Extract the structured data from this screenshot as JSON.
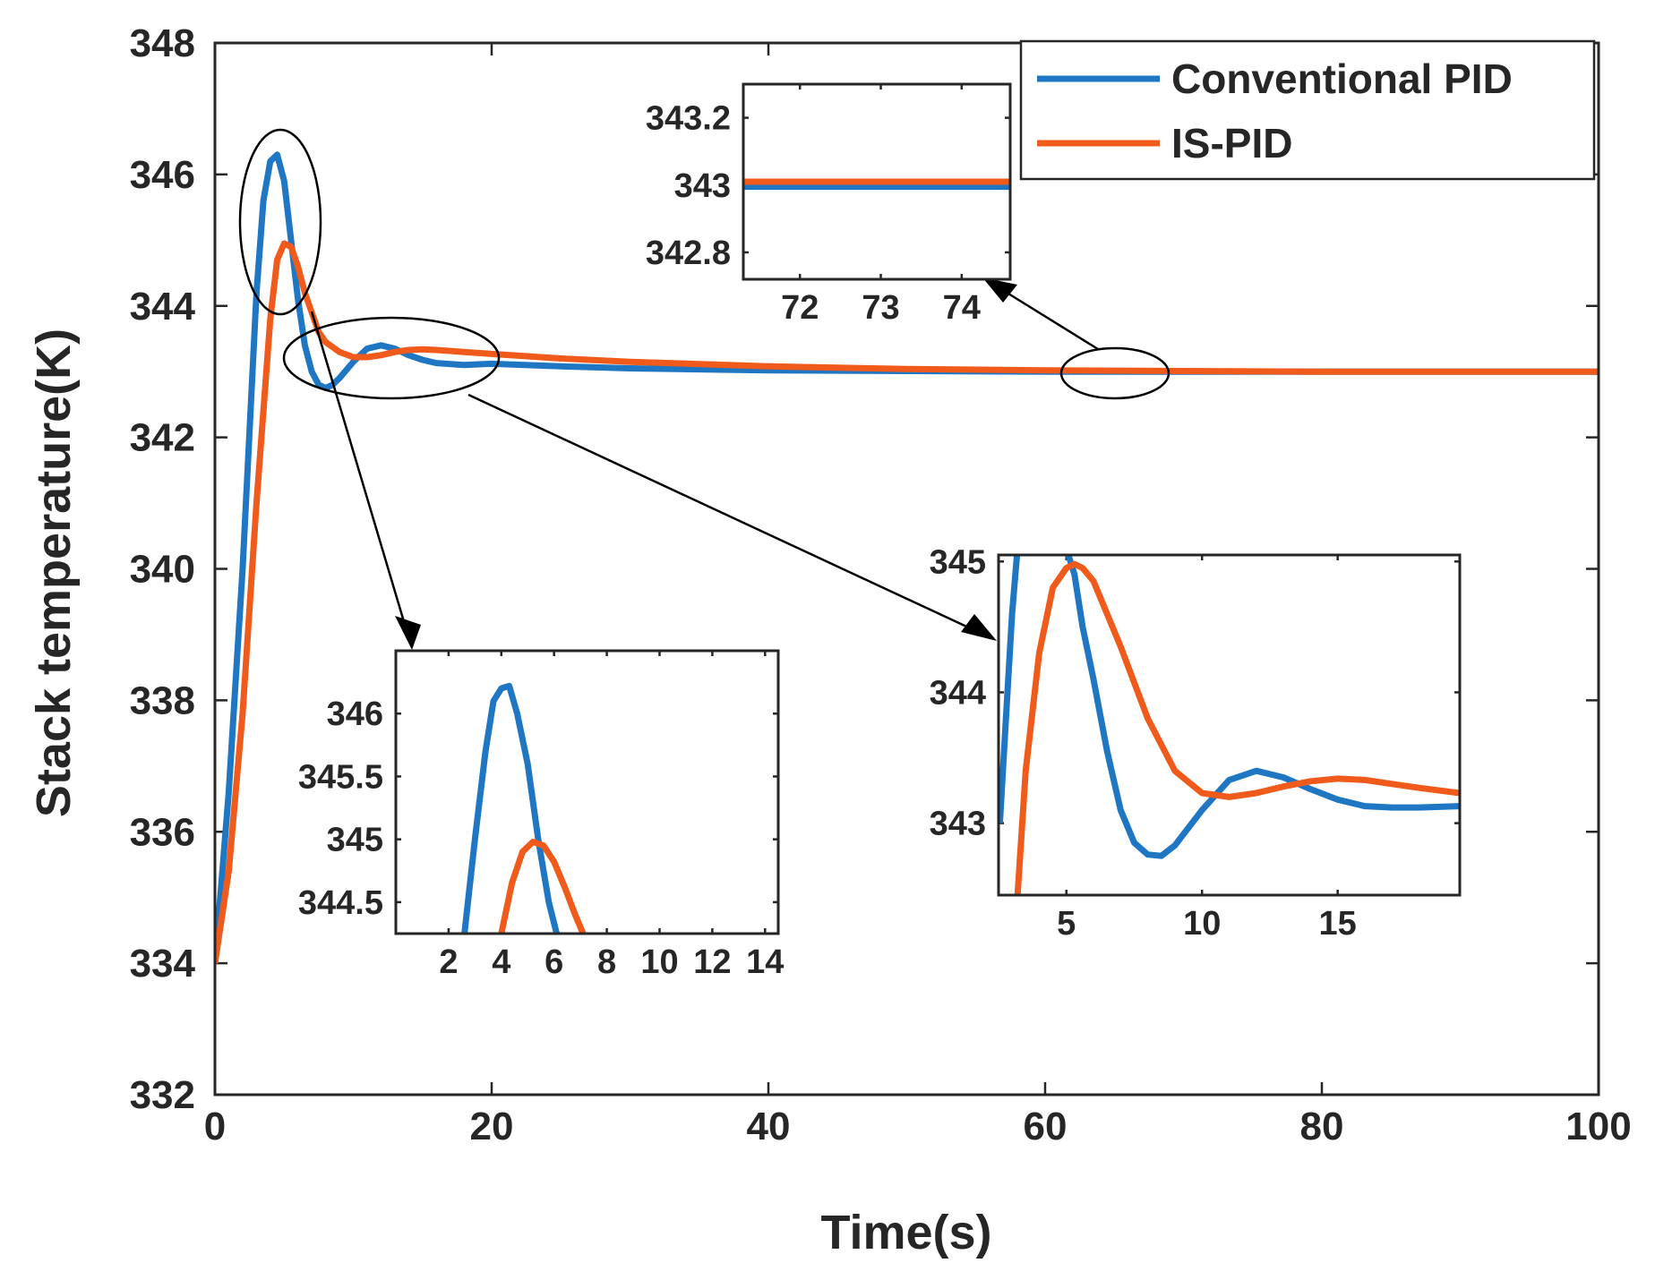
{
  "chart_data": [
    {
      "id": "main",
      "type": "line",
      "xlabel": "Time(s)",
      "ylabel": "Stack temperature(K)",
      "xlim": [
        0,
        100
      ],
      "ylim": [
        332,
        348
      ],
      "xticks": [
        0,
        20,
        40,
        60,
        80,
        100
      ],
      "yticks": [
        332,
        334,
        336,
        338,
        340,
        342,
        344,
        346,
        348
      ],
      "legend": {
        "position": "top-right",
        "entries": [
          "Conventional PID",
          "IS-PID"
        ]
      },
      "series": [
        {
          "name": "Conventional PID",
          "color": "#1f77c4",
          "x": [
            0,
            1,
            2,
            3,
            3.5,
            4,
            4.5,
            5,
            5.5,
            6,
            6.5,
            7,
            7.5,
            8,
            8.5,
            9,
            10,
            11,
            12,
            13,
            14,
            15,
            16,
            18,
            20,
            25,
            30,
            40,
            50,
            60,
            70,
            80,
            90,
            100
          ],
          "y": [
            334,
            336.6,
            340.0,
            344.2,
            345.6,
            346.2,
            346.3,
            345.9,
            345.0,
            344.1,
            343.4,
            343.0,
            342.8,
            342.75,
            342.8,
            342.9,
            343.15,
            343.35,
            343.4,
            343.35,
            343.25,
            343.18,
            343.13,
            343.1,
            343.12,
            343.08,
            343.05,
            343.02,
            343.01,
            343.0,
            343.0,
            343.0,
            343.0,
            343.0
          ]
        },
        {
          "name": "IS-PID",
          "color": "#f05a1a",
          "x": [
            0,
            1,
            2,
            3,
            4,
            4.5,
            5,
            5.5,
            6,
            6.5,
            7,
            7.5,
            8,
            9,
            10,
            11,
            12,
            13,
            14,
            15,
            16,
            18,
            20,
            25,
            30,
            40,
            50,
            60,
            70,
            80,
            90,
            100
          ],
          "y": [
            334,
            335.4,
            337.8,
            341.0,
            343.8,
            344.7,
            344.95,
            344.9,
            344.6,
            344.2,
            343.9,
            343.6,
            343.45,
            343.3,
            343.22,
            343.22,
            343.25,
            343.3,
            343.33,
            343.34,
            343.33,
            343.3,
            343.27,
            343.2,
            343.15,
            343.08,
            343.04,
            343.02,
            343.01,
            343.0,
            343.0,
            343.0
          ]
        }
      ]
    },
    {
      "id": "inset_steady",
      "type": "line",
      "xlim": [
        71.3,
        74.6
      ],
      "ylim": [
        342.72,
        343.3
      ],
      "xticks": [
        72,
        73,
        74
      ],
      "yticks": [
        342.8,
        343,
        343.2
      ],
      "ytick_labels": [
        "342.8",
        "343",
        "343.2"
      ],
      "series": [
        {
          "name": "Conventional PID",
          "color": "#1f77c4",
          "x": [
            71.3,
            74.6
          ],
          "y": [
            342.995,
            342.995
          ]
        },
        {
          "name": "IS-PID",
          "color": "#f05a1a",
          "x": [
            71.3,
            74.6
          ],
          "y": [
            343.01,
            343.01
          ]
        }
      ]
    },
    {
      "id": "inset_peak",
      "type": "line",
      "xlim": [
        0,
        14.5
      ],
      "ylim": [
        344.25,
        346.5
      ],
      "xticks": [
        2,
        4,
        6,
        8,
        10,
        12,
        14
      ],
      "yticks": [
        344.5,
        345,
        345.5,
        346
      ],
      "ytick_labels": [
        "344.5",
        "345",
        "345.5",
        "346"
      ],
      "series": [
        {
          "name": "Conventional PID",
          "color": "#1f77c4",
          "x": [
            2.6,
            3,
            3.4,
            3.7,
            4.0,
            4.3,
            4.6,
            5.0,
            5.4,
            5.8,
            6.1
          ],
          "y": [
            344.25,
            345.0,
            345.7,
            346.1,
            346.2,
            346.22,
            346.0,
            345.6,
            345.0,
            344.5,
            344.25
          ]
        },
        {
          "name": "IS-PID",
          "color": "#f05a1a",
          "x": [
            4.0,
            4.4,
            4.8,
            5.2,
            5.6,
            6.0,
            6.4,
            6.8,
            7.1
          ],
          "y": [
            344.25,
            344.65,
            344.9,
            344.98,
            344.95,
            344.82,
            344.62,
            344.4,
            344.25
          ]
        }
      ]
    },
    {
      "id": "inset_oscillation",
      "type": "line",
      "xlim": [
        2.5,
        19.5
      ],
      "ylim": [
        342.45,
        345.05
      ],
      "xticks": [
        5,
        10,
        15
      ],
      "yticks": [
        343,
        344,
        345
      ],
      "ytick_labels": [
        "343",
        "344",
        "345"
      ],
      "series": [
        {
          "name": "Conventional PID",
          "color": "#1f77c4",
          "x": [
            2.55,
            2.8,
            3.0,
            3.2,
            5.0,
            5.3,
            5.6,
            6,
            6.5,
            7,
            7.5,
            8,
            8.5,
            9,
            10,
            11,
            12,
            13,
            14,
            15,
            16,
            17,
            18,
            19.5
          ],
          "y": [
            343.0,
            343.9,
            344.6,
            345.1,
            345.1,
            344.9,
            344.5,
            344.1,
            343.55,
            343.1,
            342.85,
            342.76,
            342.75,
            342.83,
            343.1,
            343.33,
            343.4,
            343.35,
            343.26,
            343.18,
            343.13,
            343.12,
            343.12,
            343.13
          ]
        },
        {
          "name": "IS-PID",
          "color": "#f05a1a",
          "x": [
            3.2,
            3.5,
            4,
            4.5,
            5,
            5.3,
            5.6,
            6,
            7,
            8,
            9,
            10,
            11,
            12,
            13,
            14,
            15,
            16,
            17,
            18,
            19.5
          ],
          "y": [
            342.45,
            343.4,
            344.3,
            344.8,
            344.95,
            344.98,
            344.95,
            344.85,
            344.35,
            343.8,
            343.4,
            343.23,
            343.2,
            343.23,
            343.28,
            343.32,
            343.34,
            343.33,
            343.3,
            343.27,
            343.23
          ]
        }
      ]
    }
  ]
}
